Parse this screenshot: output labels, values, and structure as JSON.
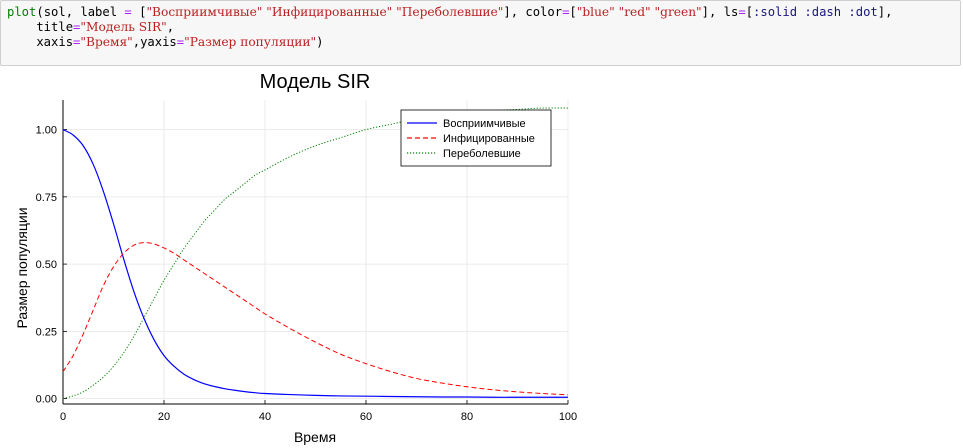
{
  "code_cell": {
    "lines": [
      [
        {
          "t": "plot",
          "c": "k"
        },
        {
          "t": "(sol, label ",
          "c": "n"
        },
        {
          "t": "=",
          "c": "o"
        },
        {
          "t": " [",
          "c": "n"
        },
        {
          "t": "\"Восприимчивые\" \"Инфицированные\" \"Переболевшие\"",
          "c": "s"
        },
        {
          "t": "], color",
          "c": "n"
        },
        {
          "t": "=",
          "c": "o"
        },
        {
          "t": "[",
          "c": "n"
        },
        {
          "t": "\"blue\" \"red\" \"green\"",
          "c": "s"
        },
        {
          "t": "], ls",
          "c": "n"
        },
        {
          "t": "=",
          "c": "o"
        },
        {
          "t": "[",
          "c": "n"
        },
        {
          "t": ":solid :dash :dot",
          "c": "sym"
        },
        {
          "t": "],",
          "c": "n"
        }
      ],
      [
        {
          "t": "    title",
          "c": "n"
        },
        {
          "t": "=",
          "c": "o"
        },
        {
          "t": "\"Модель SIR\"",
          "c": "s"
        },
        {
          "t": ",",
          "c": "n"
        }
      ],
      [
        {
          "t": "    xaxis",
          "c": "n"
        },
        {
          "t": "=",
          "c": "o"
        },
        {
          "t": "\"Время\"",
          "c": "s"
        },
        {
          "t": ",yaxis",
          "c": "n"
        },
        {
          "t": "=",
          "c": "o"
        },
        {
          "t": "\"Размер популяции\"",
          "c": "s"
        },
        {
          "t": ")",
          "c": "n"
        }
      ]
    ]
  },
  "chart_data": {
    "type": "line",
    "title": "Модель SIR",
    "xlabel": "Время",
    "ylabel": "Размер популяции",
    "xlim": [
      0,
      100
    ],
    "ylim": [
      -0.02,
      1.11
    ],
    "xticks": [
      "0",
      "20",
      "40",
      "60",
      "80",
      "100"
    ],
    "yticks": [
      "0.00",
      "0.25",
      "0.50",
      "0.75",
      "1.00"
    ],
    "grid": true,
    "legend_position": "top-right",
    "x": [
      0,
      2,
      4,
      6,
      8,
      10,
      12,
      14,
      16,
      18,
      20,
      22,
      24,
      26,
      28,
      30,
      32,
      34,
      36,
      38,
      40,
      45,
      50,
      55,
      60,
      65,
      70,
      75,
      80,
      85,
      90,
      95,
      100
    ],
    "series": [
      {
        "name": "Восприимчивые",
        "color": "#0000ff",
        "dash": "solid",
        "values": [
          1.0,
          0.98,
          0.94,
          0.87,
          0.77,
          0.65,
          0.52,
          0.4,
          0.3,
          0.22,
          0.16,
          0.12,
          0.09,
          0.07,
          0.055,
          0.045,
          0.037,
          0.031,
          0.026,
          0.022,
          0.019,
          0.015,
          0.012,
          0.01,
          0.009,
          0.008,
          0.007,
          0.006,
          0.006,
          0.005,
          0.005,
          0.005,
          0.005
        ]
      },
      {
        "name": "Инфицированные",
        "color": "#ff0000",
        "dash": "dash",
        "values": [
          0.1,
          0.16,
          0.24,
          0.33,
          0.42,
          0.49,
          0.54,
          0.57,
          0.58,
          0.575,
          0.56,
          0.54,
          0.515,
          0.49,
          0.465,
          0.44,
          0.415,
          0.39,
          0.365,
          0.34,
          0.315,
          0.26,
          0.21,
          0.165,
          0.13,
          0.1,
          0.075,
          0.058,
          0.044,
          0.033,
          0.025,
          0.019,
          0.014
        ]
      },
      {
        "name": "Переболевшие",
        "color": "#008000",
        "dash": "dot",
        "values": [
          0.0,
          0.01,
          0.025,
          0.05,
          0.08,
          0.12,
          0.17,
          0.23,
          0.3,
          0.37,
          0.44,
          0.5,
          0.56,
          0.61,
          0.66,
          0.7,
          0.74,
          0.77,
          0.8,
          0.83,
          0.85,
          0.9,
          0.94,
          0.97,
          1.0,
          1.02,
          1.04,
          1.05,
          1.06,
          1.07,
          1.075,
          1.08,
          1.08
        ]
      }
    ]
  }
}
